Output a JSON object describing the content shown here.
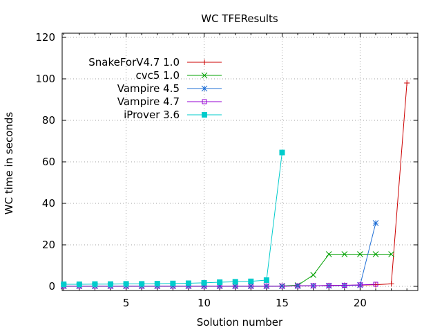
{
  "chart_data": {
    "type": "line",
    "title": "WC TFEResults",
    "xlabel": "Solution number",
    "ylabel": "WC time in seconds",
    "xlim": [
      0.9,
      23.7
    ],
    "ylim": [
      -2,
      122
    ],
    "xticks": [
      5,
      10,
      15,
      20
    ],
    "yticks": [
      0,
      20,
      40,
      60,
      80,
      100,
      120
    ],
    "grid": true,
    "legend_position": "top-left",
    "series": [
      {
        "name": "SnakeForV4.7 1.0",
        "color": "#cc0000",
        "marker": "plus",
        "x": [
          1,
          2,
          3,
          4,
          5,
          6,
          7,
          8,
          9,
          10,
          11,
          12,
          13,
          14,
          15,
          16,
          17,
          18,
          19,
          20,
          21,
          22,
          23
        ],
        "y": [
          0.1,
          0.1,
          0.1,
          0.1,
          0.1,
          0.1,
          0.1,
          0.1,
          0.1,
          0.1,
          0.1,
          0.1,
          0.1,
          0.1,
          0.1,
          0.2,
          0.3,
          0.4,
          0.5,
          0.6,
          0.8,
          1.2,
          98
        ]
      },
      {
        "name": "cvc5 1.0",
        "color": "#00a000",
        "marker": "cross",
        "x": [
          1,
          2,
          3,
          4,
          5,
          6,
          7,
          8,
          9,
          10,
          11,
          12,
          13,
          14,
          15,
          16,
          17,
          18,
          19,
          20,
          21,
          22
        ],
        "y": [
          0.1,
          0.1,
          0.1,
          0.1,
          0.1,
          0.1,
          0.1,
          0.1,
          0.1,
          0.1,
          0.1,
          0.1,
          0.1,
          0.1,
          0.2,
          0.5,
          5.5,
          15.5,
          15.5,
          15.5,
          15.5,
          15.5
        ]
      },
      {
        "name": "Vampire 4.5",
        "color": "#1f6fd6",
        "marker": "star",
        "x": [
          1,
          2,
          3,
          4,
          5,
          6,
          7,
          8,
          9,
          10,
          11,
          12,
          13,
          14,
          15,
          16,
          17,
          18,
          19,
          20,
          21
        ],
        "y": [
          0.1,
          0.1,
          0.1,
          0.1,
          0.1,
          0.1,
          0.1,
          0.1,
          0.1,
          0.1,
          0.1,
          0.1,
          0.1,
          0.1,
          0.1,
          0.2,
          0.3,
          0.3,
          0.4,
          0.6,
          30.5
        ]
      },
      {
        "name": "Vampire 4.7",
        "color": "#9400d3",
        "marker": "square-open",
        "x": [
          1,
          2,
          3,
          4,
          5,
          6,
          7,
          8,
          9,
          10,
          11,
          12,
          13,
          14,
          15,
          16,
          17,
          18,
          19,
          20,
          21
        ],
        "y": [
          0.1,
          0.1,
          0.1,
          0.1,
          0.1,
          0.1,
          0.1,
          0.1,
          0.1,
          0.1,
          0.1,
          0.1,
          0.1,
          0.1,
          0.1,
          0.2,
          0.3,
          0.4,
          0.5,
          0.7,
          1.0
        ]
      },
      {
        "name": "iProver 3.6",
        "color": "#00cccc",
        "marker": "square-filled",
        "x": [
          1,
          2,
          3,
          4,
          5,
          6,
          7,
          8,
          9,
          10,
          11,
          12,
          13,
          14,
          15
        ],
        "y": [
          1.0,
          1.0,
          1.1,
          1.1,
          1.2,
          1.2,
          1.3,
          1.4,
          1.5,
          1.7,
          2.0,
          2.2,
          2.4,
          3.0,
          64.5
        ]
      }
    ]
  }
}
